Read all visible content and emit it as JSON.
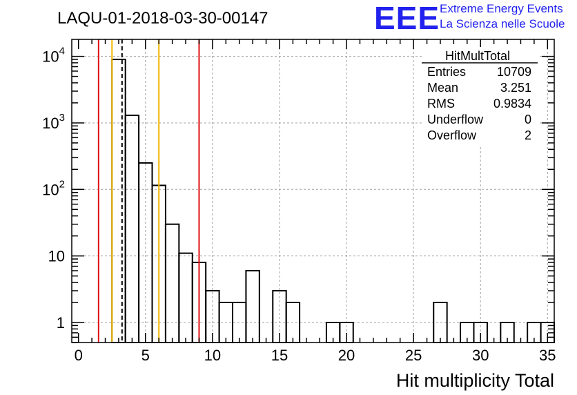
{
  "header": {
    "run_title": "LAQU-01-2018-03-30-00147",
    "logo_mark": "EEE",
    "logo_line1": "Extreme Energy Events",
    "logo_line2": "La Scienza nelle Scuole"
  },
  "colors": {
    "histogram": "#000000",
    "grid": "#a0a0a0",
    "red_line": "#e01010",
    "yellow_line": "#f0b800",
    "mean_line": "#000000",
    "logo": "#2222ee"
  },
  "stats_box": {
    "title": "HitMultTotal",
    "rows": [
      {
        "label": "Entries",
        "value": "10709"
      },
      {
        "label": "Mean",
        "value": "3.251"
      },
      {
        "label": "RMS",
        "value": "0.9834"
      },
      {
        "label": "Underflow",
        "value": "0"
      },
      {
        "label": "Overflow",
        "value": "2"
      }
    ]
  },
  "chart_data": {
    "type": "histogram",
    "title": "LAQU-01-2018-03-30-00147",
    "xlabel": "Hit multiplicity Total",
    "ylabel": "",
    "yscale": "log",
    "xlim": [
      -0.5,
      35.5
    ],
    "ylim": [
      0.5,
      18000
    ],
    "grid": true,
    "bin_width": 1,
    "bin_edges_start": -0.5,
    "counts": [
      0,
      0,
      0,
      9000,
      1300,
      250,
      115,
      30,
      11,
      8,
      3,
      2,
      2,
      6,
      0,
      3,
      2,
      0,
      0,
      1,
      1,
      0,
      0,
      0,
      0,
      0,
      0,
      2,
      0,
      1,
      1,
      0,
      1,
      0,
      1,
      1
    ],
    "xticks": [
      0,
      5,
      10,
      15,
      20,
      25,
      30,
      35
    ],
    "xtick_labels": [
      "0",
      "5",
      "10",
      "15",
      "20",
      "25",
      "30",
      "35"
    ],
    "yticks": [
      1,
      10,
      100,
      1000,
      10000
    ],
    "ytick_labels": [
      {
        "base": "1",
        "exp": ""
      },
      {
        "base": "10",
        "exp": ""
      },
      {
        "base": "10",
        "exp": "2"
      },
      {
        "base": "10",
        "exp": "3"
      },
      {
        "base": "10",
        "exp": "4"
      }
    ],
    "vertical_lines": [
      {
        "x": 1.5,
        "color": "red",
        "style": "solid"
      },
      {
        "x": 2.5,
        "color": "yellow",
        "style": "solid"
      },
      {
        "x": 3.25,
        "color": "black",
        "style": "dashed"
      },
      {
        "x": 6.0,
        "color": "yellow",
        "style": "solid"
      },
      {
        "x": 9.0,
        "color": "red",
        "style": "solid"
      }
    ]
  }
}
